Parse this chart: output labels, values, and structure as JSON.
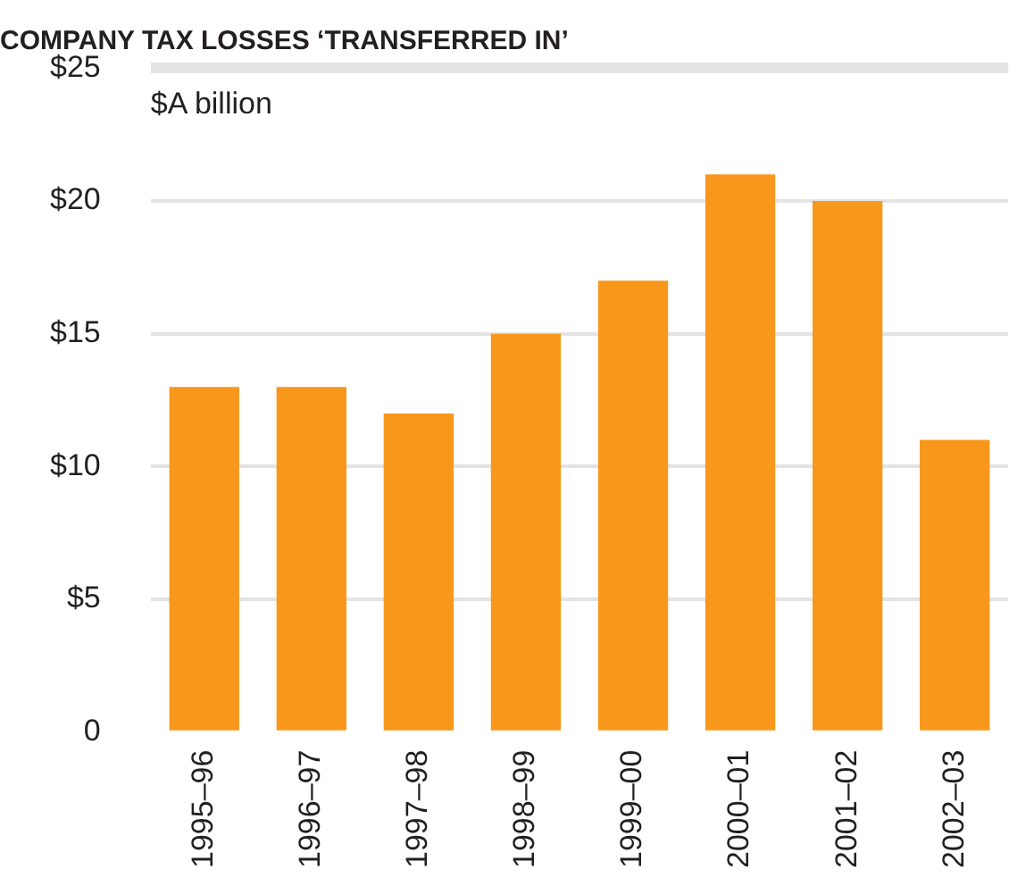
{
  "chart_data": {
    "type": "bar",
    "title": "COMPANY TAX LOSSES ‘TRANSFERRED IN’",
    "ylabel": "$A billion",
    "categories": [
      "1995–96",
      "1996–97",
      "1997–98",
      "1998–99",
      "1999–00",
      "2000–01",
      "2001–02",
      "2002–03"
    ],
    "values": [
      13,
      13,
      12,
      15,
      17,
      21,
      20,
      11
    ],
    "color": "#f7981d",
    "ylim": [
      0,
      25
    ],
    "yticks": [
      {
        "value": 0,
        "label": "0"
      },
      {
        "value": 5,
        "label": "$5"
      },
      {
        "value": 10,
        "label": "$10"
      },
      {
        "value": 15,
        "label": "$15"
      },
      {
        "value": 20,
        "label": "$20"
      },
      {
        "value": 25,
        "label": "$25"
      }
    ],
    "grid": "y"
  }
}
